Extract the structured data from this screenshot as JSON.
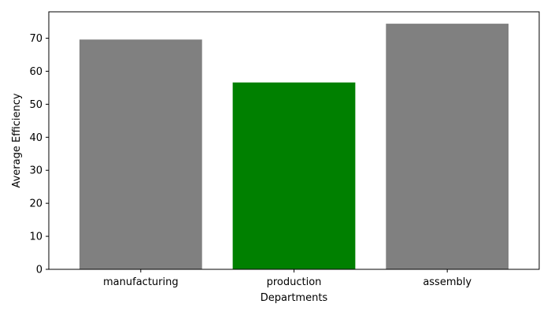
{
  "chart_data": {
    "type": "bar",
    "title": "",
    "xlabel": "Departments",
    "ylabel": "Average Efficiency",
    "categories": [
      "manufacturing",
      "production",
      "assembly"
    ],
    "values": [
      69.6,
      56.6,
      74.4
    ],
    "bar_colors": [
      "#808080",
      "#008000",
      "#808080"
    ],
    "ylim": [
      0,
      78
    ],
    "yticks": [
      0,
      10,
      20,
      30,
      40,
      50,
      60,
      70
    ],
    "grid": false,
    "legend": "none"
  }
}
